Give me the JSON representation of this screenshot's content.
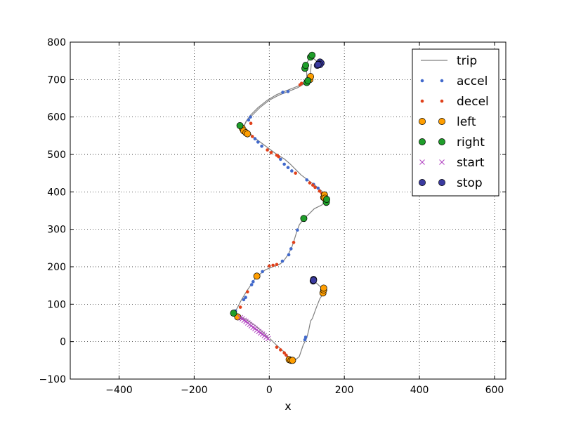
{
  "chart_data": {
    "type": "scatter",
    "xlabel": "x",
    "ylabel": "",
    "xlim": [
      -530,
      630
    ],
    "ylim": [
      -100,
      800
    ],
    "xticks": [
      -400,
      -200,
      0,
      200,
      400,
      600
    ],
    "yticks": [
      -100,
      0,
      100,
      200,
      300,
      400,
      500,
      600,
      700,
      800
    ],
    "xtick_labels": [
      "−400",
      "−200",
      "0",
      "200",
      "400",
      "600"
    ],
    "ytick_labels": [
      "−100",
      "0",
      "100",
      "200",
      "300",
      "400",
      "500",
      "600",
      "700",
      "800"
    ],
    "grid": true,
    "legend_position": "top-right",
    "colors": {
      "trip": "#808080",
      "accel": "#4169cc",
      "decel": "#e0401a",
      "left": "#ff9e00",
      "right": "#1f9e2a",
      "start": "#b040c0",
      "stop": "#3a3aa0"
    },
    "trip": [
      [
        [
          -2,
          10
        ],
        [
          -20,
          28
        ],
        [
          -40,
          45
        ],
        [
          -60,
          58
        ],
        [
          -80,
          68
        ],
        [
          -95,
          75
        ],
        [
          -85,
          90
        ],
        [
          -75,
          110
        ],
        [
          -60,
          135
        ],
        [
          -50,
          150
        ],
        [
          -40,
          165
        ],
        [
          -25,
          180
        ],
        [
          -10,
          192
        ],
        [
          10,
          200
        ],
        [
          30,
          208
        ],
        [
          40,
          218
        ],
        [
          50,
          232
        ],
        [
          60,
          252
        ],
        [
          66,
          270
        ],
        [
          72,
          290
        ],
        [
          80,
          312
        ],
        [
          92,
          328
        ],
        [
          105,
          340
        ],
        [
          120,
          355
        ],
        [
          140,
          365
        ],
        [
          150,
          375
        ],
        [
          148,
          390
        ],
        [
          140,
          402
        ],
        [
          125,
          415
        ],
        [
          105,
          430
        ],
        [
          85,
          445
        ],
        [
          70,
          460
        ],
        [
          55,
          475
        ],
        [
          40,
          488
        ],
        [
          20,
          500
        ],
        [
          0,
          515
        ],
        [
          -20,
          530
        ],
        [
          -40,
          545
        ],
        [
          -55,
          560
        ],
        [
          -68,
          572
        ],
        [
          -62,
          588
        ],
        [
          -50,
          605
        ],
        [
          -30,
          625
        ],
        [
          -5,
          645
        ],
        [
          20,
          660
        ],
        [
          45,
          670
        ],
        [
          70,
          680
        ],
        [
          90,
          688
        ],
        [
          100,
          700
        ],
        [
          100,
          715
        ],
        [
          98,
          730
        ],
        [
          100,
          745
        ],
        [
          112,
          762
        ],
        [
          125,
          750
        ],
        [
          138,
          740
        ]
      ],
      [
        [
          -70,
          572
        ],
        [
          -60,
          590
        ],
        [
          -45,
          605
        ],
        [
          -25,
          625
        ],
        [
          0,
          645
        ],
        [
          25,
          658
        ],
        [
          50,
          668
        ],
        [
          75,
          678
        ],
        [
          95,
          690
        ],
        [
          108,
          700
        ],
        [
          110,
          720
        ],
        [
          112,
          742
        ]
      ],
      [
        [
          2,
          8
        ],
        [
          20,
          -10
        ],
        [
          40,
          -28
        ],
        [
          55,
          -45
        ],
        [
          68,
          -50
        ],
        [
          80,
          -40
        ],
        [
          90,
          -10
        ],
        [
          100,
          10
        ],
        [
          105,
          30
        ],
        [
          110,
          55
        ],
        [
          115,
          62
        ],
        [
          125,
          90
        ],
        [
          135,
          115
        ],
        [
          145,
          130
        ],
        [
          143,
          140
        ],
        [
          120,
          162
        ]
      ]
    ],
    "series": [
      {
        "name": "accel",
        "marker": "dot",
        "points": [
          [
            -90,
            82
          ],
          [
            -68,
            112
          ],
          [
            -63,
            118
          ],
          [
            -47,
            152
          ],
          [
            -43,
            160
          ],
          [
            -18,
            187
          ],
          [
            35,
            215
          ],
          [
            52,
            232
          ],
          [
            58,
            248
          ],
          [
            75,
            298
          ],
          [
            -55,
            592
          ],
          [
            -50,
            600
          ],
          [
            -38,
            542
          ],
          [
            -30,
            533
          ],
          [
            -20,
            522
          ],
          [
            30,
            487
          ],
          [
            40,
            474
          ],
          [
            50,
            465
          ],
          [
            60,
            456
          ],
          [
            100,
            432
          ],
          [
            118,
            420
          ],
          [
            130,
            410
          ],
          [
            36,
            666
          ],
          [
            50,
            668
          ],
          [
            95,
            5
          ],
          [
            97,
            12
          ]
        ]
      },
      {
        "name": "decel",
        "marker": "dot",
        "points": [
          [
            -77,
            92
          ],
          [
            -58,
            133
          ],
          [
            0,
            202
          ],
          [
            10,
            204
          ],
          [
            20,
            206
          ],
          [
            65,
            265
          ],
          [
            -49,
            583
          ],
          [
            -45,
            548
          ],
          [
            -5,
            512
          ],
          [
            5,
            505
          ],
          [
            20,
            498
          ],
          [
            25,
            494
          ],
          [
            70,
            450
          ],
          [
            108,
            424
          ],
          [
            116,
            418
          ],
          [
            122,
            412
          ],
          [
            134,
            402
          ],
          [
            140,
            396
          ],
          [
            82,
            686
          ],
          [
            86,
            690
          ],
          [
            20,
            -15
          ],
          [
            30,
            -22
          ],
          [
            40,
            -30
          ],
          [
            45,
            -36
          ],
          [
            50,
            -43
          ]
        ]
      },
      {
        "name": "left",
        "marker": "circle",
        "points": [
          [
            -84,
            66
          ],
          [
            -33,
            175
          ],
          [
            -72,
            570
          ],
          [
            -68,
            563
          ],
          [
            -62,
            558
          ],
          [
            -58,
            555
          ],
          [
            145,
            385
          ],
          [
            147,
            392
          ],
          [
            148,
            383
          ],
          [
            108,
            700
          ],
          [
            110,
            708
          ],
          [
            53,
            -48
          ],
          [
            58,
            -50
          ],
          [
            62,
            -50
          ],
          [
            143,
            130
          ],
          [
            145,
            138
          ],
          [
            145,
            143
          ]
        ]
      },
      {
        "name": "right",
        "marker": "circle",
        "points": [
          [
            -95,
            76
          ],
          [
            -78,
            577
          ],
          [
            152,
            372
          ],
          [
            153,
            380
          ],
          [
            92,
            329
          ],
          [
            95,
            730
          ],
          [
            97,
            738
          ],
          [
            100,
            692
          ],
          [
            103,
            697
          ],
          [
            110,
            760
          ],
          [
            114,
            765
          ]
        ]
      },
      {
        "name": "start",
        "marker": "x",
        "points": [
          [
            -3,
            8
          ],
          [
            -8,
            12
          ],
          [
            -13,
            16
          ],
          [
            -18,
            20
          ],
          [
            -23,
            23
          ],
          [
            -28,
            27
          ],
          [
            -33,
            31
          ],
          [
            -38,
            35
          ],
          [
            -43,
            38
          ],
          [
            -48,
            42
          ],
          [
            -52,
            46
          ],
          [
            -57,
            50
          ],
          [
            -62,
            54
          ],
          [
            -67,
            57
          ],
          [
            -72,
            61
          ],
          [
            -77,
            64
          ]
        ]
      },
      {
        "name": "stop",
        "marker": "circle",
        "points": [
          [
            128,
            738
          ],
          [
            132,
            743
          ],
          [
            135,
            747
          ],
          [
            138,
            744
          ],
          [
            135,
            740
          ],
          [
            130,
            740
          ],
          [
            117,
            162
          ],
          [
            118,
            166
          ],
          [
            118,
            164
          ]
        ]
      }
    ]
  }
}
